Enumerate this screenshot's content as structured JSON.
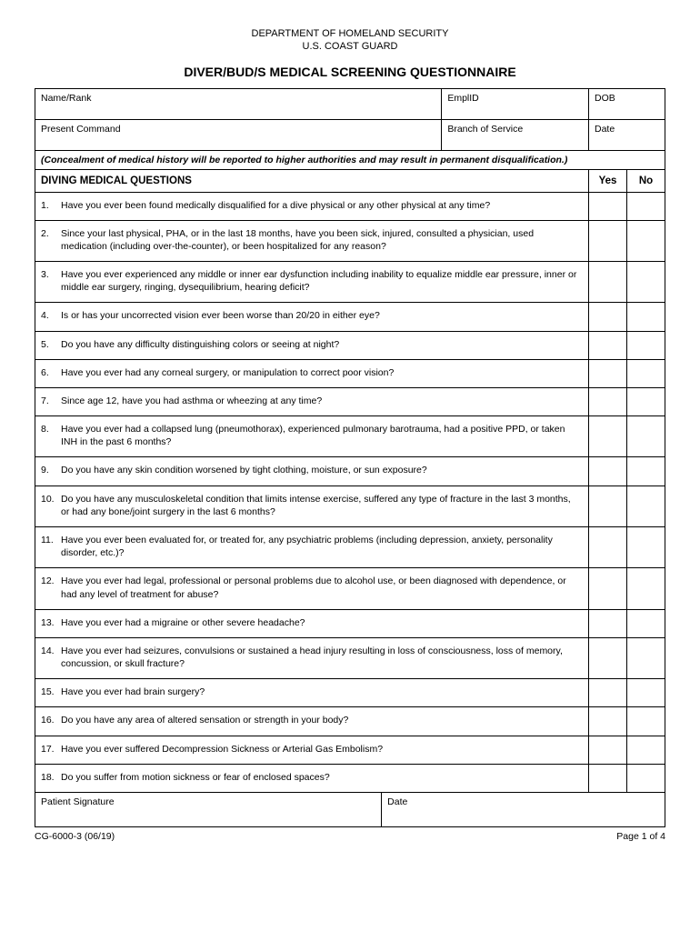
{
  "header": {
    "dept": "DEPARTMENT OF HOMELAND SECURITY",
    "agency": "U.S. COAST GUARD",
    "title": "DIVER/BUD/S MEDICAL SCREENING QUESTIONNAIRE"
  },
  "fields": {
    "row1": [
      {
        "label": "Name/Rank",
        "width": "55%"
      },
      {
        "label": "EmplID",
        "width": "25%"
      },
      {
        "label": "DOB",
        "width": "20%"
      }
    ],
    "row2": [
      {
        "label": "Present Command",
        "width": "55%"
      },
      {
        "label": "Branch of Service",
        "width": "25%"
      },
      {
        "label": "Date",
        "width": "20%"
      }
    ]
  },
  "disclaimer": "(Concealment of medical history will be reported to higher authorities and may result in permanent disqualification.)",
  "section_title": "DIVING MEDICAL QUESTIONS",
  "yes_label": "Yes",
  "no_label": "No",
  "questions": [
    {
      "n": "1.",
      "t": "Have you ever been found medically disqualified for a dive physical or any other physical at any time?"
    },
    {
      "n": "2.",
      "t": "Since your last physical, PHA, or in the last 18 months, have you been sick, injured, consulted a physician, used medication (including over-the-counter), or been hospitalized for any reason?"
    },
    {
      "n": "3.",
      "t": "Have you ever experienced any middle or inner ear dysfunction including inability to equalize middle ear pressure, inner or middle ear surgery, ringing, dysequilibrium, hearing deficit?"
    },
    {
      "n": "4.",
      "t": "Is or has your uncorrected vision ever been worse than 20/20 in either eye?"
    },
    {
      "n": "5.",
      "t": "Do you have any difficulty distinguishing colors or seeing at night?"
    },
    {
      "n": "6.",
      "t": "Have you ever had any corneal surgery, or manipulation to correct poor vision?"
    },
    {
      "n": "7.",
      "t": "Since age 12, have you had asthma or wheezing at any time?"
    },
    {
      "n": "8.",
      "t": "Have you ever had a collapsed lung (pneumothorax), experienced pulmonary barotrauma, had a positive PPD, or taken INH in the past 6 months?"
    },
    {
      "n": "9.",
      "t": "Do you have any skin condition worsened by tight clothing, moisture, or sun exposure?"
    },
    {
      "n": "10.",
      "t": "Do you have any musculoskeletal condition that limits intense exercise, suffered any type of fracture in the last 3 months, or had any bone/joint surgery in the last 6 months?"
    },
    {
      "n": "11.",
      "t": "Have you ever been evaluated for, or treated for, any psychiatric problems (including depression, anxiety, personality disorder, etc.)?"
    },
    {
      "n": "12.",
      "t": "Have you ever had legal, professional or personal problems due to alcohol use, or been diagnosed with dependence, or had any level of treatment for abuse?"
    },
    {
      "n": "13.",
      "t": "Have you ever had a migraine or other severe headache?"
    },
    {
      "n": "14.",
      "t": "Have you ever had seizures, convulsions or sustained a head injury resulting in loss of consciousness, loss of memory, concussion, or skull fracture?"
    },
    {
      "n": "15.",
      "t": "Have you ever had brain surgery?"
    },
    {
      "n": "16.",
      "t": "Do you have any area of altered sensation or strength in your body?"
    },
    {
      "n": "17.",
      "t": "Have you ever suffered Decompression Sickness or Arterial Gas Embolism?"
    },
    {
      "n": "18.",
      "t": "Do you suffer from motion sickness or fear of enclosed spaces?"
    }
  ],
  "signature": {
    "patient_sig": "Patient Signature",
    "date": "Date"
  },
  "footer": {
    "form_id": "CG-6000-3 (06/19)",
    "page": "Page 1 of 4"
  },
  "colors": {
    "border": "#000000",
    "text": "#000000",
    "background": "#ffffff"
  }
}
